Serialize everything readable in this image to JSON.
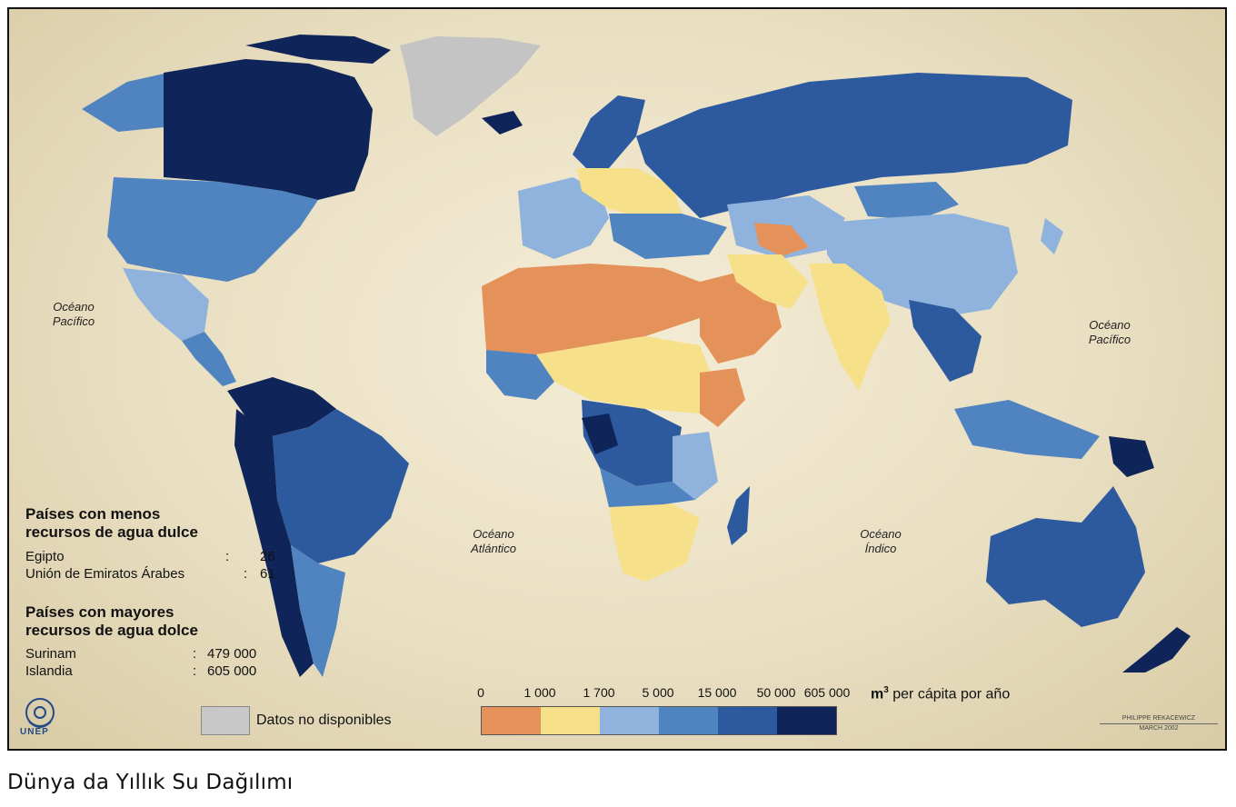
{
  "oceans": {
    "pacific_west": [
      "Océano",
      "Pacífico"
    ],
    "pacific_east": [
      "Océano",
      "Pacífico"
    ],
    "atlantic": [
      "Océano",
      "Atlántico"
    ],
    "indian": [
      "Océano",
      "Índico"
    ]
  },
  "least": {
    "title_line1": "Países con menos",
    "title_line2": "recursos de agua dulce",
    "rows": [
      {
        "country": "Egipto",
        "sep": ":",
        "value": "26"
      },
      {
        "country": "Unión de Emiratos Árabes",
        "sep": ":",
        "value": "61"
      }
    ]
  },
  "most": {
    "title_line1": "Países con mayores",
    "title_line2": "recursos de agua dolce",
    "rows": [
      {
        "country": "Surinam",
        "sep": ":",
        "value": "479 000"
      },
      {
        "country": "Islandia",
        "sep": ":",
        "value": "605 000"
      }
    ]
  },
  "legend": {
    "tick_labels": [
      "0",
      "1 000",
      "1 700",
      "5 000",
      "15 000",
      "50 000",
      "605 000"
    ],
    "unit": "m",
    "unit_sup": "3",
    "unit_rest": " per cápita por año",
    "colors": [
      "#e5915a",
      "#f6e08a",
      "#8fb3dc",
      "#4f84c0",
      "#2d5a9e",
      "#0f2458"
    ],
    "no_data_label": "Datos no disponibles",
    "no_data_color": "#c8c8c8"
  },
  "logo": {
    "text": "UNEP",
    "icon": "unep-emblem-icon"
  },
  "credit": {
    "line1": "PHILIPPE REKACEWICZ",
    "line2": "MARCH 2002"
  },
  "caption": "Dünya da Yıllık Su Dağılımı"
}
